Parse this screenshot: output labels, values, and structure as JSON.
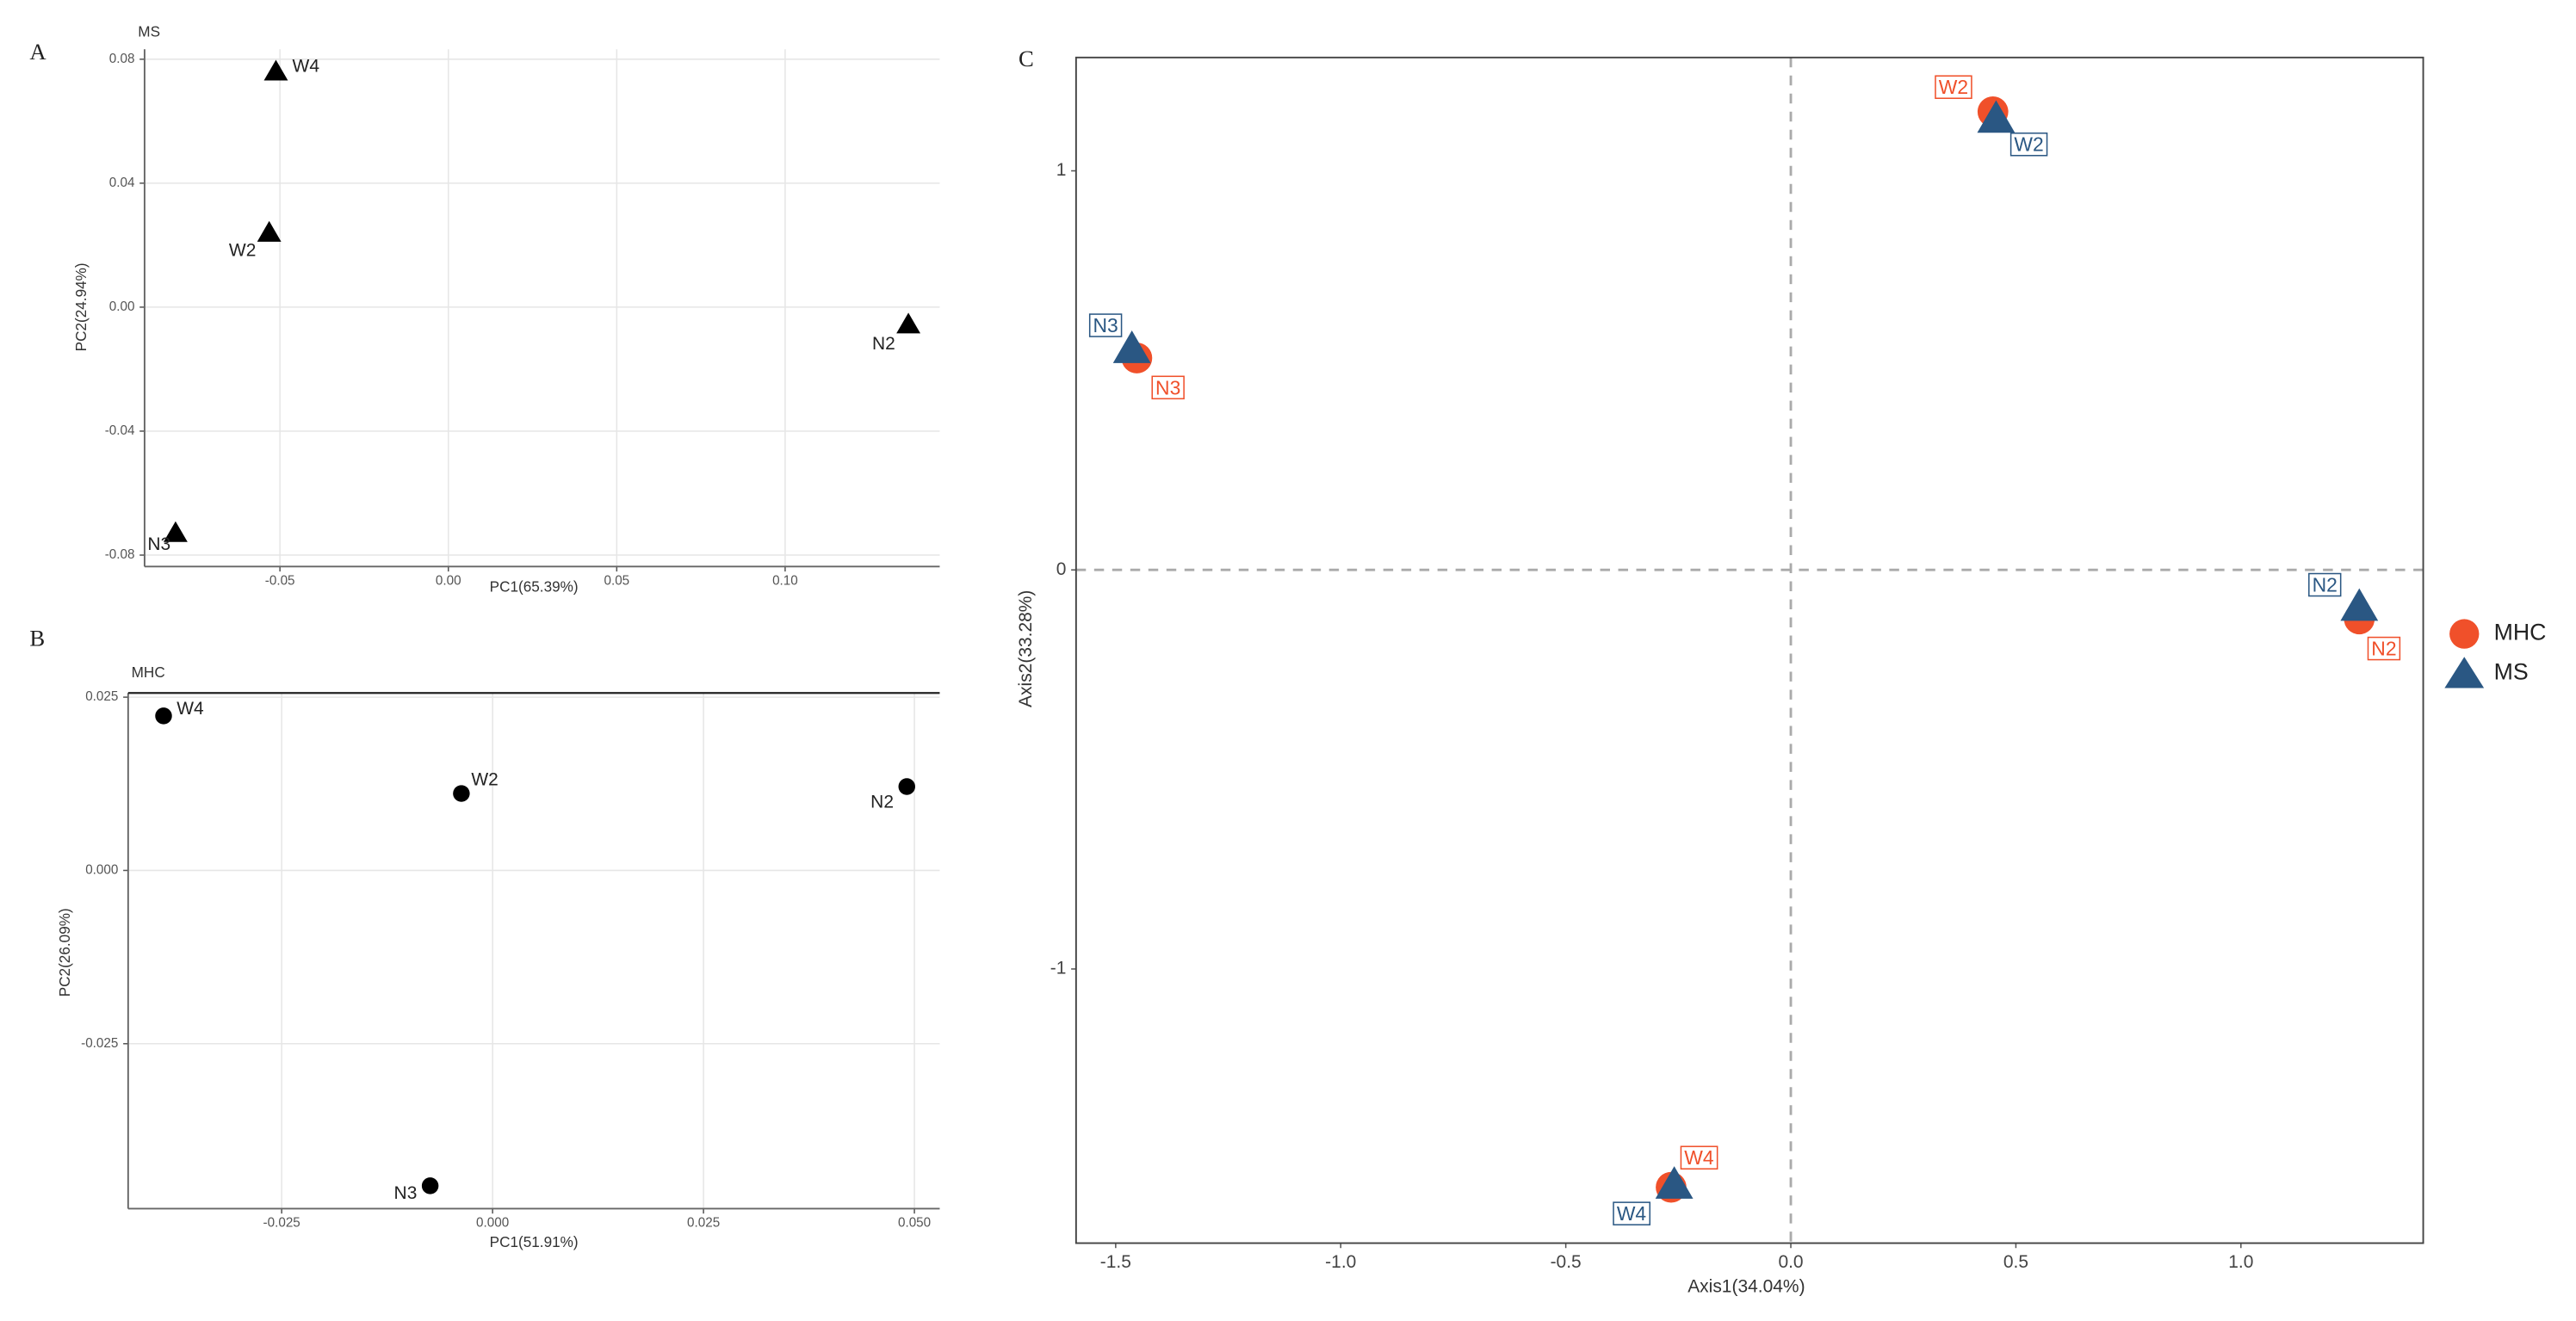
{
  "chart_data": [
    {
      "type": "scatter",
      "panel_label": "A",
      "title": "MS",
      "x_label": "PC1(65.39%)",
      "y_label": "PC2(24.94%)",
      "marker": "triangle",
      "color": "#000000",
      "grid": true,
      "labels": [
        "W4",
        "W2",
        "N2",
        "N3"
      ],
      "x": [
        -0.0512,
        -0.0532,
        0.1366,
        -0.081
      ],
      "y": [
        0.0758,
        0.0238,
        -0.0058,
        -0.0731
      ],
      "xlim": [
        -0.0902,
        0.1459
      ],
      "ylim": [
        -0.0837,
        0.0832
      ],
      "xticks": [
        -0.05,
        {
          "value": 0,
          "label": "0.00"
        },
        0.05,
        {
          "value": 0.1,
          "label": "0.10"
        }
      ],
      "yticks": [
        -0.08,
        -0.04,
        {
          "value": 0,
          "label": "0.00"
        },
        0.04,
        0.08
      ]
    },
    {
      "type": "scatter",
      "panel_label": "B",
      "title": "MHC",
      "x_label": "PC1(51.91%)",
      "y_label": "PC2(26.09%)",
      "marker": "circle",
      "color": "#000000",
      "grid": true,
      "labels": [
        "W4",
        "W2",
        "N2",
        "N3"
      ],
      "x": [
        -0.039,
        -0.0037,
        0.0491,
        -0.0074
      ],
      "y": [
        0.0223,
        0.0111,
        0.0121,
        -0.0455
      ],
      "xlim": [
        -0.0432,
        0.053
      ],
      "ylim": [
        -0.0488,
        0.0256
      ],
      "xticks": [
        -0.025,
        {
          "value": 0,
          "label": "0.000"
        },
        0.025,
        {
          "value": 0.05,
          "label": "0.050"
        }
      ],
      "yticks": [
        -0.025,
        {
          "value": 0,
          "label": "0.000"
        },
        0.025
      ]
    },
    {
      "type": "scatter",
      "panel_label": "C",
      "x_label": "Axis1(34.04%)",
      "y_label": "Axis2(33.28%)",
      "grid": false,
      "series": [
        {
          "name": "MHC",
          "color": "#f0502a",
          "marker": "circle",
          "labels": [
            "W2",
            "N3",
            "N2",
            "W4"
          ],
          "x": [
            0.449,
            -1.453,
            1.263,
            -0.266
          ],
          "y": [
            1.148,
            0.531,
            -0.123,
            -1.547
          ]
        },
        {
          "name": "MS",
          "color": "#2a5783",
          "marker": "triangle",
          "labels": [
            "W2",
            "N3",
            "N2",
            "W4"
          ],
          "x": [
            0.456,
            -1.464,
            1.263,
            -0.259
          ],
          "y": [
            1.128,
            0.551,
            -0.095,
            -1.543
          ]
        }
      ],
      "xlim": [
        -1.588,
        1.405
      ],
      "ylim": [
        -1.687,
        1.284
      ],
      "xticks": [
        -1.5,
        {
          "value": -1,
          "label": "-1.0"
        },
        -0.5,
        {
          "value": 0,
          "label": "0.0"
        },
        0.5,
        {
          "value": 1,
          "label": "1.0"
        }
      ],
      "yticks": [
        -1,
        0,
        1
      ]
    }
  ]
}
